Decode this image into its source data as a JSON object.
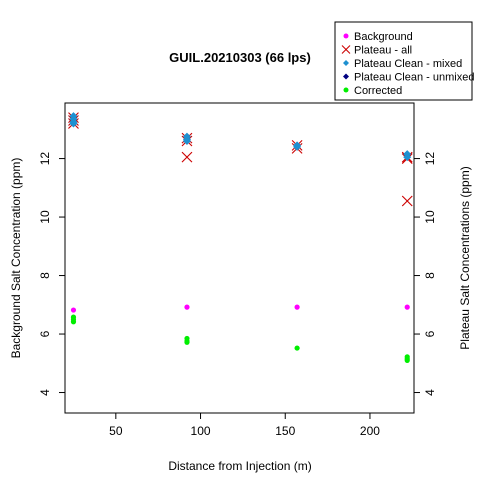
{
  "chart_data": {
    "type": "scatter",
    "title": "GUIL.20210303 (66 lps)",
    "xlabel": "Distance from Injection (m)",
    "ylabel_left": "Background Salt Concentration (ppm)",
    "ylabel_right": "Plateau Salt Concentrations (ppm)",
    "xlim": [
      20,
      226
    ],
    "ylim": [
      3.3,
      13.9
    ],
    "x_ticks": [
      50,
      100,
      150,
      200
    ],
    "y_ticks": [
      4,
      6,
      8,
      10,
      12
    ],
    "legend_position": "top-right",
    "grid": false,
    "series": [
      {
        "name": "Background",
        "marker": "dot",
        "color": "#ff00ff",
        "points": [
          [
            25,
            6.82
          ],
          [
            92,
            6.92
          ],
          [
            157,
            6.92
          ],
          [
            222,
            6.92
          ]
        ]
      },
      {
        "name": "Plateau - all",
        "marker": "x",
        "color": "#cc0000",
        "points": [
          [
            25,
            13.3
          ],
          [
            25,
            13.4
          ],
          [
            25,
            13.2
          ],
          [
            92,
            12.7
          ],
          [
            92,
            12.6
          ],
          [
            92,
            12.05
          ],
          [
            157,
            12.35
          ],
          [
            157,
            12.45
          ],
          [
            222,
            12.05
          ],
          [
            222,
            12.0
          ],
          [
            222,
            10.55
          ]
        ]
      },
      {
        "name": "Plateau Clean - mixed",
        "marker": "diamond",
        "color": "#1e90d0",
        "points": [
          [
            25,
            13.45
          ],
          [
            25,
            13.35
          ],
          [
            25,
            13.25
          ],
          [
            25,
            13.2
          ],
          [
            92,
            12.75
          ],
          [
            92,
            12.65
          ],
          [
            92,
            12.6
          ],
          [
            157,
            12.45
          ],
          [
            157,
            12.4
          ],
          [
            222,
            12.15
          ],
          [
            222,
            12.05
          ]
        ]
      },
      {
        "name": "Plateau Clean - unmixed",
        "marker": "diamond",
        "color": "#000080",
        "points": []
      },
      {
        "name": "Corrected",
        "marker": "dot",
        "color": "#00ee00",
        "points": [
          [
            25,
            6.58
          ],
          [
            25,
            6.5
          ],
          [
            25,
            6.42
          ],
          [
            92,
            5.85
          ],
          [
            92,
            5.76
          ],
          [
            92,
            5.72
          ],
          [
            157,
            5.52
          ],
          [
            222,
            5.22
          ],
          [
            222,
            5.15
          ],
          [
            222,
            5.1
          ]
        ]
      }
    ]
  }
}
